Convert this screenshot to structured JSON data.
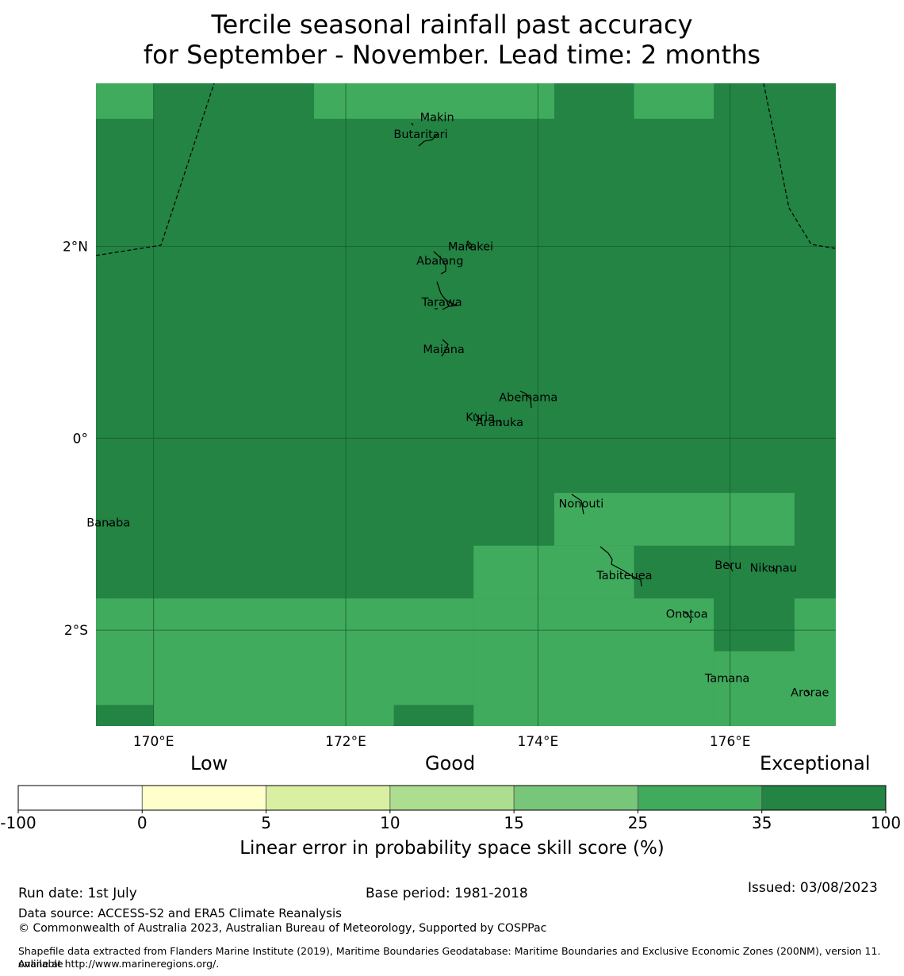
{
  "title": {
    "line1": "Tercile seasonal rainfall past accuracy",
    "line2": "for September - November. Lead time: 2 months"
  },
  "map": {
    "lon_range": [
      169.4,
      177.1
    ],
    "lat_range": [
      -3.0,
      3.7
    ],
    "lon_ticks": [
      {
        "value": 170,
        "label": "170°E"
      },
      {
        "value": 172,
        "label": "172°E"
      },
      {
        "value": 174,
        "label": "174°E"
      },
      {
        "value": 176,
        "label": "176°E"
      }
    ],
    "lat_ticks": [
      {
        "value": 2,
        "label": "2°N"
      },
      {
        "value": 0,
        "label": "0°"
      },
      {
        "value": -2,
        "label": "2°S"
      }
    ],
    "base_color": "#238443",
    "grid": true,
    "skill_regions": [
      {
        "lon": [
          169.4,
          170.0
        ],
        "lat": [
          3.33,
          3.7
        ],
        "category": "25-35"
      },
      {
        "lon": [
          171.67,
          174.17
        ],
        "lat": [
          3.33,
          3.7
        ],
        "category": "25-35"
      },
      {
        "lon": [
          175.0,
          175.83
        ],
        "lat": [
          3.33,
          3.7
        ],
        "category": "25-35"
      },
      {
        "lon": [
          174.17,
          176.67
        ],
        "lat": [
          -1.12,
          -0.57
        ],
        "category": "25-35"
      },
      {
        "lon": [
          173.33,
          175.0
        ],
        "lat": [
          -1.67,
          -1.12
        ],
        "category": "25-35"
      },
      {
        "lon": [
          169.4,
          173.33
        ],
        "lat": [
          -3.0,
          -1.67
        ],
        "category": "25-35"
      },
      {
        "lon": [
          173.33,
          175.83
        ],
        "lat": [
          -3.0,
          -1.67
        ],
        "category": "25-35"
      },
      {
        "lon": [
          175.83,
          176.67
        ],
        "lat": [
          -3.0,
          -2.22
        ],
        "category": "25-35"
      },
      {
        "lon": [
          176.67,
          177.1
        ],
        "lat": [
          -3.0,
          -1.67
        ],
        "category": "25-35"
      },
      {
        "lon": [
          169.4,
          170.0
        ],
        "lat": [
          -3.0,
          -2.78
        ],
        "category": "35-100"
      },
      {
        "lon": [
          172.5,
          173.33
        ],
        "lat": [
          -3.0,
          -2.78
        ],
        "category": "35-100"
      }
    ],
    "islands": [
      {
        "name": "Makin",
        "lon": 172.95,
        "lat": 3.35
      },
      {
        "name": "Butaritari",
        "lon": 172.78,
        "lat": 3.17
      },
      {
        "name": "Marakei",
        "lon": 173.3,
        "lat": 2.0
      },
      {
        "name": "Abaiang",
        "lon": 172.98,
        "lat": 1.85
      },
      {
        "name": "Tarawa",
        "lon": 173.0,
        "lat": 1.42
      },
      {
        "name": "Maiana",
        "lon": 173.02,
        "lat": 0.93
      },
      {
        "name": "Abemama",
        "lon": 173.9,
        "lat": 0.43
      },
      {
        "name": "Kuria",
        "lon": 173.4,
        "lat": 0.22
      },
      {
        "name": "Aranuka",
        "lon": 173.6,
        "lat": 0.17
      },
      {
        "name": "Nonouti",
        "lon": 174.45,
        "lat": -0.68
      },
      {
        "name": "Banaba",
        "lon": 169.53,
        "lat": -0.88
      },
      {
        "name": "Beru",
        "lon": 175.98,
        "lat": -1.32
      },
      {
        "name": "Tabiteuea",
        "lon": 174.9,
        "lat": -1.43
      },
      {
        "name": "Nikunau",
        "lon": 176.45,
        "lat": -1.35
      },
      {
        "name": "Onotoa",
        "lon": 175.55,
        "lat": -1.83
      },
      {
        "name": "Tamana",
        "lon": 175.97,
        "lat": -2.5
      },
      {
        "name": "Arorae",
        "lon": 176.83,
        "lat": -2.65
      }
    ]
  },
  "legend": {
    "categories": [
      "Low",
      "Good",
      "Exceptional"
    ],
    "bins": [
      {
        "range": "-100-0",
        "color": "#ffffff"
      },
      {
        "range": "0-5",
        "color": "#ffffcc"
      },
      {
        "range": "5-10",
        "color": "#d9f0a3"
      },
      {
        "range": "10-15",
        "color": "#addd8e"
      },
      {
        "range": "15-25",
        "color": "#78c679"
      },
      {
        "range": "25-35",
        "color": "#41ab5d"
      },
      {
        "range": "35-100",
        "color": "#238443"
      }
    ],
    "tick_labels": [
      "-100",
      "0",
      "5",
      "10",
      "15",
      "25",
      "35",
      "100"
    ],
    "label": "Linear error in probability space skill score (%)"
  },
  "footer": {
    "run_date": "Run date: 1st July",
    "base_period": "Base period: 1981-2018",
    "issued": "Issued: 03/08/2023",
    "data_source": "Data source: ACCESS-S2 and ERA5 Climate Reanalysis",
    "copyright": "© Commonwealth of Australia 2023, Australian Bureau of Meteorology, Supported by COSPPac",
    "shapefile_line1": "Shapefile data extracted from Flanders Marine Institute (2019), Maritime Boundaries Geodatabase: Maritime Boundaries and Exclusive Economic Zones (200NM), version 11. Available",
    "shapefile_line2": "online at http://www.marineregions.org/."
  }
}
